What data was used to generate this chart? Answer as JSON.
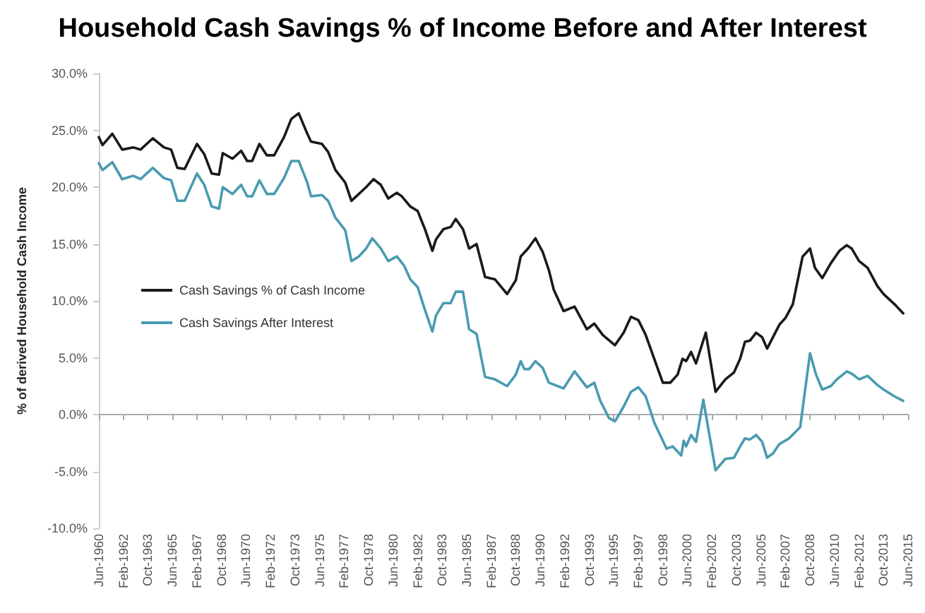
{
  "chart_data": {
    "type": "line",
    "title": "Household Cash Savings % of Income Before and After Interest",
    "ylabel": "% of derived Household Cash Income",
    "xlim": [
      "1960-06",
      "2015-06"
    ],
    "xticks": [
      {
        "value": "1960-06",
        "label": "Jun-1960"
      },
      {
        "value": "1962-02",
        "label": "Feb-1962"
      },
      {
        "value": "1963-10",
        "label": "Oct-1963"
      },
      {
        "value": "1965-06",
        "label": "Jun-1965"
      },
      {
        "value": "1967-02",
        "label": "Feb-1967"
      },
      {
        "value": "1968-10",
        "label": "Oct-1968"
      },
      {
        "value": "1970-06",
        "label": "Jun-1970"
      },
      {
        "value": "1972-02",
        "label": "Feb-1972"
      },
      {
        "value": "1973-10",
        "label": "Oct-1973"
      },
      {
        "value": "1975-06",
        "label": "Jun-1975"
      },
      {
        "value": "1977-02",
        "label": "Feb-1977"
      },
      {
        "value": "1978-10",
        "label": "Oct-1978"
      },
      {
        "value": "1980-06",
        "label": "Jun-1980"
      },
      {
        "value": "1982-02",
        "label": "Feb-1982"
      },
      {
        "value": "1983-10",
        "label": "Oct-1983"
      },
      {
        "value": "1985-06",
        "label": "Jun-1985"
      },
      {
        "value": "1987-02",
        "label": "Feb-1987"
      },
      {
        "value": "1988-10",
        "label": "Oct-1988"
      },
      {
        "value": "1990-06",
        "label": "Jun-1990"
      },
      {
        "value": "1992-02",
        "label": "Feb-1992"
      },
      {
        "value": "1993-10",
        "label": "Oct-1993"
      },
      {
        "value": "1995-06",
        "label": "Jun-1995"
      },
      {
        "value": "1997-02",
        "label": "Feb-1997"
      },
      {
        "value": "1998-10",
        "label": "Oct-1998"
      },
      {
        "value": "2000-06",
        "label": "Jun-2000"
      },
      {
        "value": "2002-02",
        "label": "Feb-2002"
      },
      {
        "value": "2003-10",
        "label": "Oct-2003"
      },
      {
        "value": "2005-06",
        "label": "Jun-2005"
      },
      {
        "value": "2007-02",
        "label": "Feb-2007"
      },
      {
        "value": "2008-10",
        "label": "Oct-2008"
      },
      {
        "value": "2010-06",
        "label": "Jun-2010"
      },
      {
        "value": "2012-02",
        "label": "Feb-2012"
      },
      {
        "value": "2013-10",
        "label": "Oct-2013"
      },
      {
        "value": "2015-06",
        "label": "Jun-2015"
      }
    ],
    "ylim": [
      -10,
      30
    ],
    "yticks": [
      {
        "value": -10,
        "label": "-10.0%"
      },
      {
        "value": -5,
        "label": "-5.0%"
      },
      {
        "value": 0,
        "label": "0.0%"
      },
      {
        "value": 5,
        "label": "5.0%"
      },
      {
        "value": 10,
        "label": "10.0%"
      },
      {
        "value": 15,
        "label": "15.0%"
      },
      {
        "value": 20,
        "label": "20.0%"
      },
      {
        "value": 25,
        "label": "25.0%"
      },
      {
        "value": 30,
        "label": "30.0%"
      }
    ],
    "legend": "left",
    "marker": "none",
    "line_style": "solid",
    "series": [
      {
        "name": "Cash Savings % of Cash Income",
        "color": "#1a1a1a",
        "x": [
          "1960-06",
          "1960-09",
          "1961-05",
          "1962-01",
          "1962-10",
          "1963-04",
          "1964-02",
          "1964-11",
          "1965-05",
          "1965-10",
          "1966-04",
          "1967-02",
          "1967-08",
          "1968-02",
          "1968-08",
          "1968-11",
          "1969-07",
          "1970-02",
          "1970-07",
          "1970-11",
          "1971-05",
          "1971-11",
          "1972-05",
          "1973-01",
          "1973-07",
          "1974-01",
          "1974-08",
          "1974-11",
          "1975-08",
          "1976-01",
          "1976-07",
          "1977-03",
          "1977-08",
          "1978-02",
          "1978-08",
          "1979-02",
          "1979-08",
          "1980-02",
          "1980-09",
          "1981-01",
          "1981-08",
          "1982-02",
          "1982-08",
          "1983-02",
          "1983-05",
          "1983-11",
          "1984-05",
          "1984-09",
          "1985-03",
          "1985-08",
          "1986-02",
          "1986-09",
          "1987-05",
          "1988-03",
          "1988-10",
          "1989-02",
          "1989-08",
          "1990-02",
          "1990-08",
          "1991-01",
          "1991-05",
          "1992-01",
          "1992-10",
          "1993-08",
          "1994-02",
          "1994-09",
          "1995-07",
          "1996-02",
          "1996-08",
          "1997-02",
          "1997-08",
          "1998-03",
          "1998-10",
          "1999-04",
          "1999-10",
          "2000-02",
          "2000-05",
          "2000-09",
          "2001-01",
          "2001-09",
          "2002-05",
          "2003-01",
          "2003-08",
          "2004-01",
          "2004-05",
          "2004-09",
          "2005-02",
          "2005-07",
          "2005-11",
          "2006-09",
          "2007-02",
          "2007-08",
          "2008-04",
          "2008-10",
          "2009-02",
          "2009-08",
          "2010-03",
          "2010-10",
          "2011-04",
          "2011-08",
          "2012-02",
          "2012-09",
          "2013-05",
          "2013-10",
          "2014-07",
          "2015-02"
        ],
        "values": [
          24.4,
          23.7,
          24.7,
          23.3,
          23.5,
          23.3,
          24.3,
          23.5,
          23.3,
          21.7,
          21.6,
          23.8,
          22.9,
          21.2,
          21.1,
          23.0,
          22.5,
          23.2,
          22.3,
          22.3,
          23.8,
          22.8,
          22.8,
          24.4,
          26.0,
          26.5,
          24.7,
          24.0,
          23.8,
          23.1,
          21.5,
          20.4,
          18.8,
          19.4,
          20.0,
          20.7,
          20.2,
          19.0,
          19.5,
          19.2,
          18.3,
          17.9,
          16.3,
          14.4,
          15.4,
          16.3,
          16.5,
          17.2,
          16.3,
          14.6,
          15.0,
          12.1,
          11.9,
          10.6,
          11.8,
          13.9,
          14.6,
          15.5,
          14.3,
          12.7,
          11.0,
          9.1,
          9.5,
          7.5,
          8.0,
          7.0,
          6.1,
          7.2,
          8.6,
          8.3,
          7.0,
          4.9,
          2.8,
          2.8,
          3.5,
          4.9,
          4.7,
          5.5,
          4.5,
          7.2,
          2.0,
          3.1,
          3.7,
          4.9,
          6.4,
          6.5,
          7.2,
          6.8,
          5.8,
          7.9,
          8.5,
          9.7,
          13.9,
          14.6,
          12.9,
          12.0,
          13.3,
          14.4,
          14.9,
          14.6,
          13.5,
          12.9,
          11.3,
          10.6,
          9.7,
          8.9
        ]
      },
      {
        "name": "Cash Savings After Interest",
        "color": "#4a9bb0",
        "x": [
          "1960-06",
          "1960-09",
          "1961-05",
          "1962-01",
          "1962-10",
          "1963-04",
          "1964-02",
          "1964-11",
          "1965-05",
          "1965-10",
          "1966-04",
          "1967-02",
          "1967-08",
          "1968-02",
          "1968-08",
          "1968-11",
          "1969-07",
          "1970-02",
          "1970-07",
          "1970-11",
          "1971-05",
          "1971-11",
          "1972-05",
          "1973-01",
          "1973-07",
          "1974-01",
          "1974-08",
          "1974-11",
          "1975-08",
          "1976-01",
          "1976-07",
          "1977-03",
          "1977-08",
          "1978-02",
          "1978-08",
          "1979-01",
          "1979-08",
          "1980-02",
          "1980-09",
          "1981-03",
          "1981-08",
          "1982-02",
          "1982-08",
          "1983-02",
          "1983-05",
          "1983-11",
          "1984-05",
          "1984-09",
          "1985-03",
          "1985-08",
          "1986-02",
          "1986-09",
          "1987-05",
          "1988-03",
          "1988-10",
          "1989-02",
          "1989-05",
          "1989-09",
          "1990-02",
          "1990-08",
          "1991-01",
          "1992-01",
          "1992-10",
          "1993-08",
          "1994-02",
          "1994-07",
          "1995-02",
          "1995-07",
          "1996-02",
          "1996-08",
          "1997-02",
          "1997-08",
          "1998-03",
          "1999-01",
          "1999-06",
          "2000-01",
          "2000-03",
          "2000-05",
          "2000-09",
          "2001-01",
          "2001-07",
          "2002-05",
          "2003-01",
          "2003-08",
          "2004-01",
          "2004-05",
          "2004-09",
          "2005-02",
          "2005-07",
          "2005-11",
          "2006-04",
          "2006-09",
          "2007-05",
          "2008-02",
          "2008-10",
          "2009-03",
          "2009-08",
          "2010-03",
          "2010-08",
          "2011-04",
          "2011-08",
          "2012-02",
          "2012-09",
          "2013-05",
          "2013-10",
          "2014-07",
          "2015-02"
        ],
        "values": [
          22.1,
          21.5,
          22.2,
          20.7,
          21.0,
          20.7,
          21.7,
          20.8,
          20.6,
          18.8,
          18.8,
          21.2,
          20.2,
          18.3,
          18.1,
          20.0,
          19.4,
          20.2,
          19.2,
          19.2,
          20.6,
          19.4,
          19.4,
          20.8,
          22.3,
          22.3,
          20.4,
          19.2,
          19.3,
          18.8,
          17.3,
          16.2,
          13.5,
          13.9,
          14.6,
          15.5,
          14.6,
          13.5,
          13.9,
          13.1,
          11.9,
          11.2,
          9.2,
          7.3,
          8.7,
          9.8,
          9.8,
          10.8,
          10.8,
          7.5,
          7.1,
          3.3,
          3.1,
          2.5,
          3.5,
          4.7,
          4.0,
          4.0,
          4.7,
          4.1,
          2.8,
          2.3,
          3.8,
          2.4,
          2.8,
          1.2,
          -0.3,
          -0.6,
          0.7,
          2.0,
          2.4,
          1.6,
          -0.7,
          -3.0,
          -2.8,
          -3.6,
          -2.3,
          -2.8,
          -1.8,
          -2.4,
          1.3,
          -4.9,
          -3.9,
          -3.8,
          -2.8,
          -2.1,
          -2.2,
          -1.8,
          -2.4,
          -3.8,
          -3.4,
          -2.6,
          -2.1,
          -1.1,
          5.4,
          3.5,
          2.2,
          2.5,
          3.1,
          3.8,
          3.6,
          3.1,
          3.4,
          2.6,
          2.2,
          1.6,
          1.2
        ]
      }
    ]
  }
}
